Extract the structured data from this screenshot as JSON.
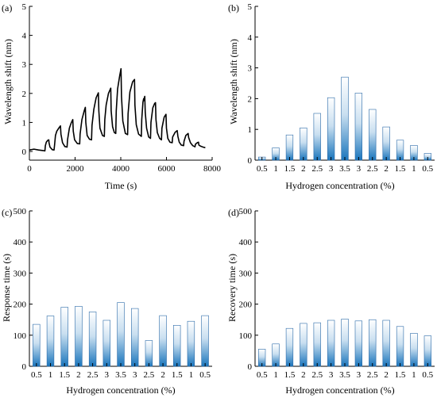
{
  "chart_data": [
    {
      "panel_label": "(a)",
      "type": "line",
      "xlabel": "Time (s)",
      "ylabel": "Wavelength shift (nm)",
      "xlim": [
        0,
        8000
      ],
      "ylim": [
        -0.3,
        5
      ],
      "xticks": [
        0,
        2000,
        4000,
        6000,
        8000
      ],
      "yticks": [
        0,
        1,
        2,
        3,
        4,
        5
      ],
      "grid": false,
      "series": [
        {
          "values": [
            [
              0,
              0.05
            ],
            [
              200,
              0.08
            ],
            [
              400,
              0.05
            ],
            [
              600,
              0.03
            ],
            [
              680,
              0.02
            ],
            [
              700,
              0.2
            ],
            [
              740,
              0.32
            ],
            [
              800,
              0.38
            ],
            [
              850,
              0.4
            ],
            [
              860,
              0.3
            ],
            [
              900,
              0.15
            ],
            [
              1000,
              0.06
            ],
            [
              1080,
              0.05
            ],
            [
              1100,
              0.2
            ],
            [
              1140,
              0.55
            ],
            [
              1200,
              0.7
            ],
            [
              1300,
              0.82
            ],
            [
              1360,
              0.88
            ],
            [
              1380,
              0.6
            ],
            [
              1450,
              0.3
            ],
            [
              1550,
              0.17
            ],
            [
              1650,
              0.15
            ],
            [
              1670,
              0.4
            ],
            [
              1750,
              0.8
            ],
            [
              1830,
              0.98
            ],
            [
              1900,
              1.1
            ],
            [
              1920,
              0.7
            ],
            [
              1980,
              0.4
            ],
            [
              2100,
              0.27
            ],
            [
              2200,
              0.26
            ],
            [
              2220,
              0.6
            ],
            [
              2300,
              1.1
            ],
            [
              2400,
              1.4
            ],
            [
              2450,
              1.52
            ],
            [
              2470,
              1.0
            ],
            [
              2530,
              0.55
            ],
            [
              2630,
              0.42
            ],
            [
              2720,
              0.4
            ],
            [
              2740,
              0.9
            ],
            [
              2820,
              1.45
            ],
            [
              2920,
              1.85
            ],
            [
              3020,
              2.02
            ],
            [
              3040,
              1.4
            ],
            [
              3090,
              0.8
            ],
            [
              3200,
              0.55
            ],
            [
              3280,
              0.52
            ],
            [
              3300,
              1.1
            ],
            [
              3360,
              1.6
            ],
            [
              3460,
              2.0
            ],
            [
              3560,
              2.18
            ],
            [
              3580,
              1.4
            ],
            [
              3640,
              0.85
            ],
            [
              3720,
              0.65
            ],
            [
              3780,
              0.62
            ],
            [
              3800,
              1.4
            ],
            [
              3860,
              2.15
            ],
            [
              3950,
              2.6
            ],
            [
              4010,
              2.85
            ],
            [
              4030,
              1.9
            ],
            [
              4090,
              1.05
            ],
            [
              4200,
              0.62
            ],
            [
              4300,
              0.58
            ],
            [
              4320,
              1.3
            ],
            [
              4400,
              2.05
            ],
            [
              4520,
              2.4
            ],
            [
              4600,
              2.48
            ],
            [
              4620,
              1.6
            ],
            [
              4680,
              0.92
            ],
            [
              4780,
              0.6
            ],
            [
              4900,
              0.52
            ],
            [
              4920,
              1.1
            ],
            [
              4970,
              1.7
            ],
            [
              5000,
              1.82
            ],
            [
              5010,
              1.75
            ],
            [
              5050,
              1.9
            ],
            [
              5070,
              1.35
            ],
            [
              5130,
              0.8
            ],
            [
              5220,
              0.5
            ],
            [
              5300,
              0.45
            ],
            [
              5320,
              1.0
            ],
            [
              5400,
              1.5
            ],
            [
              5480,
              1.65
            ],
            [
              5520,
              1.68
            ],
            [
              5540,
              1.1
            ],
            [
              5600,
              0.65
            ],
            [
              5700,
              0.45
            ],
            [
              5780,
              0.4
            ],
            [
              5800,
              0.8
            ],
            [
              5900,
              1.18
            ],
            [
              5980,
              1.28
            ],
            [
              6000,
              0.8
            ],
            [
              6060,
              0.45
            ],
            [
              6150,
              0.32
            ],
            [
              6250,
              0.3
            ],
            [
              6270,
              0.5
            ],
            [
              6380,
              0.66
            ],
            [
              6470,
              0.72
            ],
            [
              6500,
              0.52
            ],
            [
              6560,
              0.32
            ],
            [
              6650,
              0.22
            ],
            [
              6750,
              0.2
            ],
            [
              6770,
              0.35
            ],
            [
              6850,
              0.55
            ],
            [
              6950,
              0.62
            ],
            [
              6970,
              0.48
            ],
            [
              7050,
              0.3
            ],
            [
              7150,
              0.2
            ],
            [
              7250,
              0.16
            ],
            [
              7270,
              0.25
            ],
            [
              7350,
              0.3
            ],
            [
              7400,
              0.32
            ],
            [
              7420,
              0.22
            ],
            [
              7500,
              0.18
            ],
            [
              7600,
              0.15
            ],
            [
              7700,
              0.13
            ]
          ]
        }
      ]
    },
    {
      "panel_label": "(b)",
      "type": "bar",
      "xlabel": "Hydrogen concentration (%)",
      "ylabel": "Wavelength shift (nm)",
      "categories": [
        "0.5",
        "1",
        "1.5",
        "2",
        "2.5",
        "3",
        "3.5",
        "3",
        "2.5",
        "2",
        "1.5",
        "1",
        "0.5"
      ],
      "values": [
        0.1,
        0.4,
        0.82,
        1.05,
        1.52,
        2.03,
        2.7,
        2.18,
        1.65,
        1.08,
        0.65,
        0.48,
        0.22
      ],
      "ylim": [
        0,
        5
      ],
      "yticks": [
        0,
        1,
        2,
        3,
        4,
        5
      ],
      "grid": false
    },
    {
      "panel_label": "(c)",
      "type": "bar",
      "xlabel": "Hydrogen concentration (%)",
      "ylabel": "Response time (s)",
      "categories": [
        "0.5",
        "1",
        "1.5",
        "2",
        "2.5",
        "3",
        "3.5",
        "3",
        "2.5",
        "2",
        "1.5",
        "1",
        "0.5"
      ],
      "values": [
        135,
        162,
        190,
        193,
        175,
        148,
        205,
        186,
        83,
        163,
        132,
        145,
        163
      ],
      "ylim": [
        0,
        500
      ],
      "yticks": [
        0,
        100,
        200,
        300,
        400,
        500
      ],
      "grid": false
    },
    {
      "panel_label": "(d)",
      "type": "bar",
      "xlabel": "Hydrogen concentration (%)",
      "ylabel": "Recovery time (s)",
      "categories": [
        "0.5",
        "1",
        "1.5",
        "2",
        "2.5",
        "3",
        "3.5",
        "3",
        "2.5",
        "2",
        "1.5",
        "1",
        "0.5"
      ],
      "values": [
        55,
        72,
        122,
        138,
        140,
        148,
        152,
        146,
        150,
        148,
        128,
        106,
        98
      ],
      "ylim": [
        0,
        500
      ],
      "yticks": [
        0,
        100,
        200,
        300,
        400,
        500
      ],
      "grid": false
    }
  ],
  "colors": {
    "bar_top": "#ffffff",
    "bar_mid": "#c9dff0",
    "bar_bottom": "#1a75bc",
    "bar_outline": "#2a6aa8",
    "line": "#000000",
    "axis": "#000000"
  }
}
